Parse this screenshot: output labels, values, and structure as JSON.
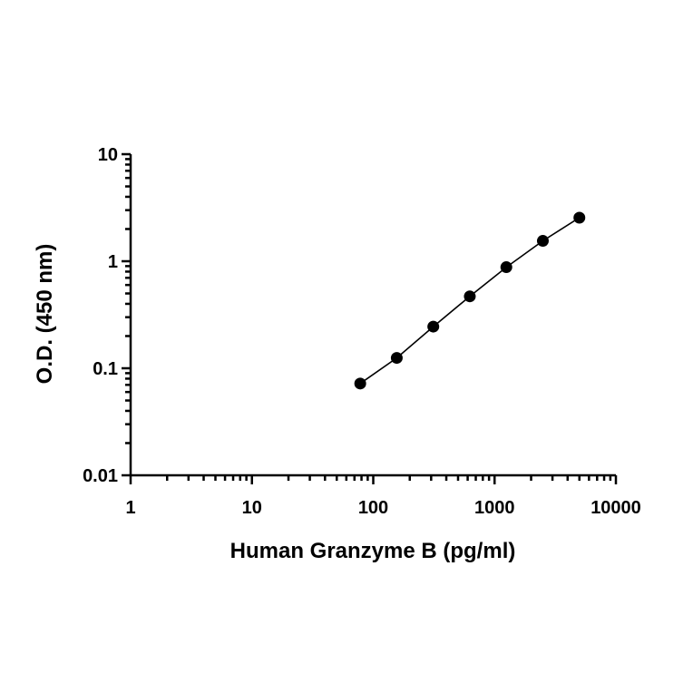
{
  "chart_data": {
    "type": "scatter",
    "xlabel": "Human Granzyme B (pg/ml)",
    "ylabel": "O.D. (450 nm)",
    "xscale": "log",
    "yscale": "log",
    "xlim": [
      1,
      10000
    ],
    "ylim": [
      0.01,
      10
    ],
    "x_ticks": [
      1,
      10,
      100,
      1000,
      10000
    ],
    "x_tick_labels": [
      "1",
      "10",
      "100",
      "1000",
      "10000"
    ],
    "y_ticks": [
      0.01,
      0.1,
      1,
      10
    ],
    "y_tick_labels": [
      "0.01",
      "0.1",
      "1",
      "10"
    ],
    "grid": false,
    "fit_line": true,
    "marker_color": "#000000",
    "series": [
      {
        "x": [
          78.1,
          156.25,
          312.5,
          625,
          1250,
          2500,
          5000
        ],
        "y": [
          0.072,
          0.125,
          0.245,
          0.47,
          0.88,
          1.55,
          2.55
        ]
      }
    ]
  }
}
